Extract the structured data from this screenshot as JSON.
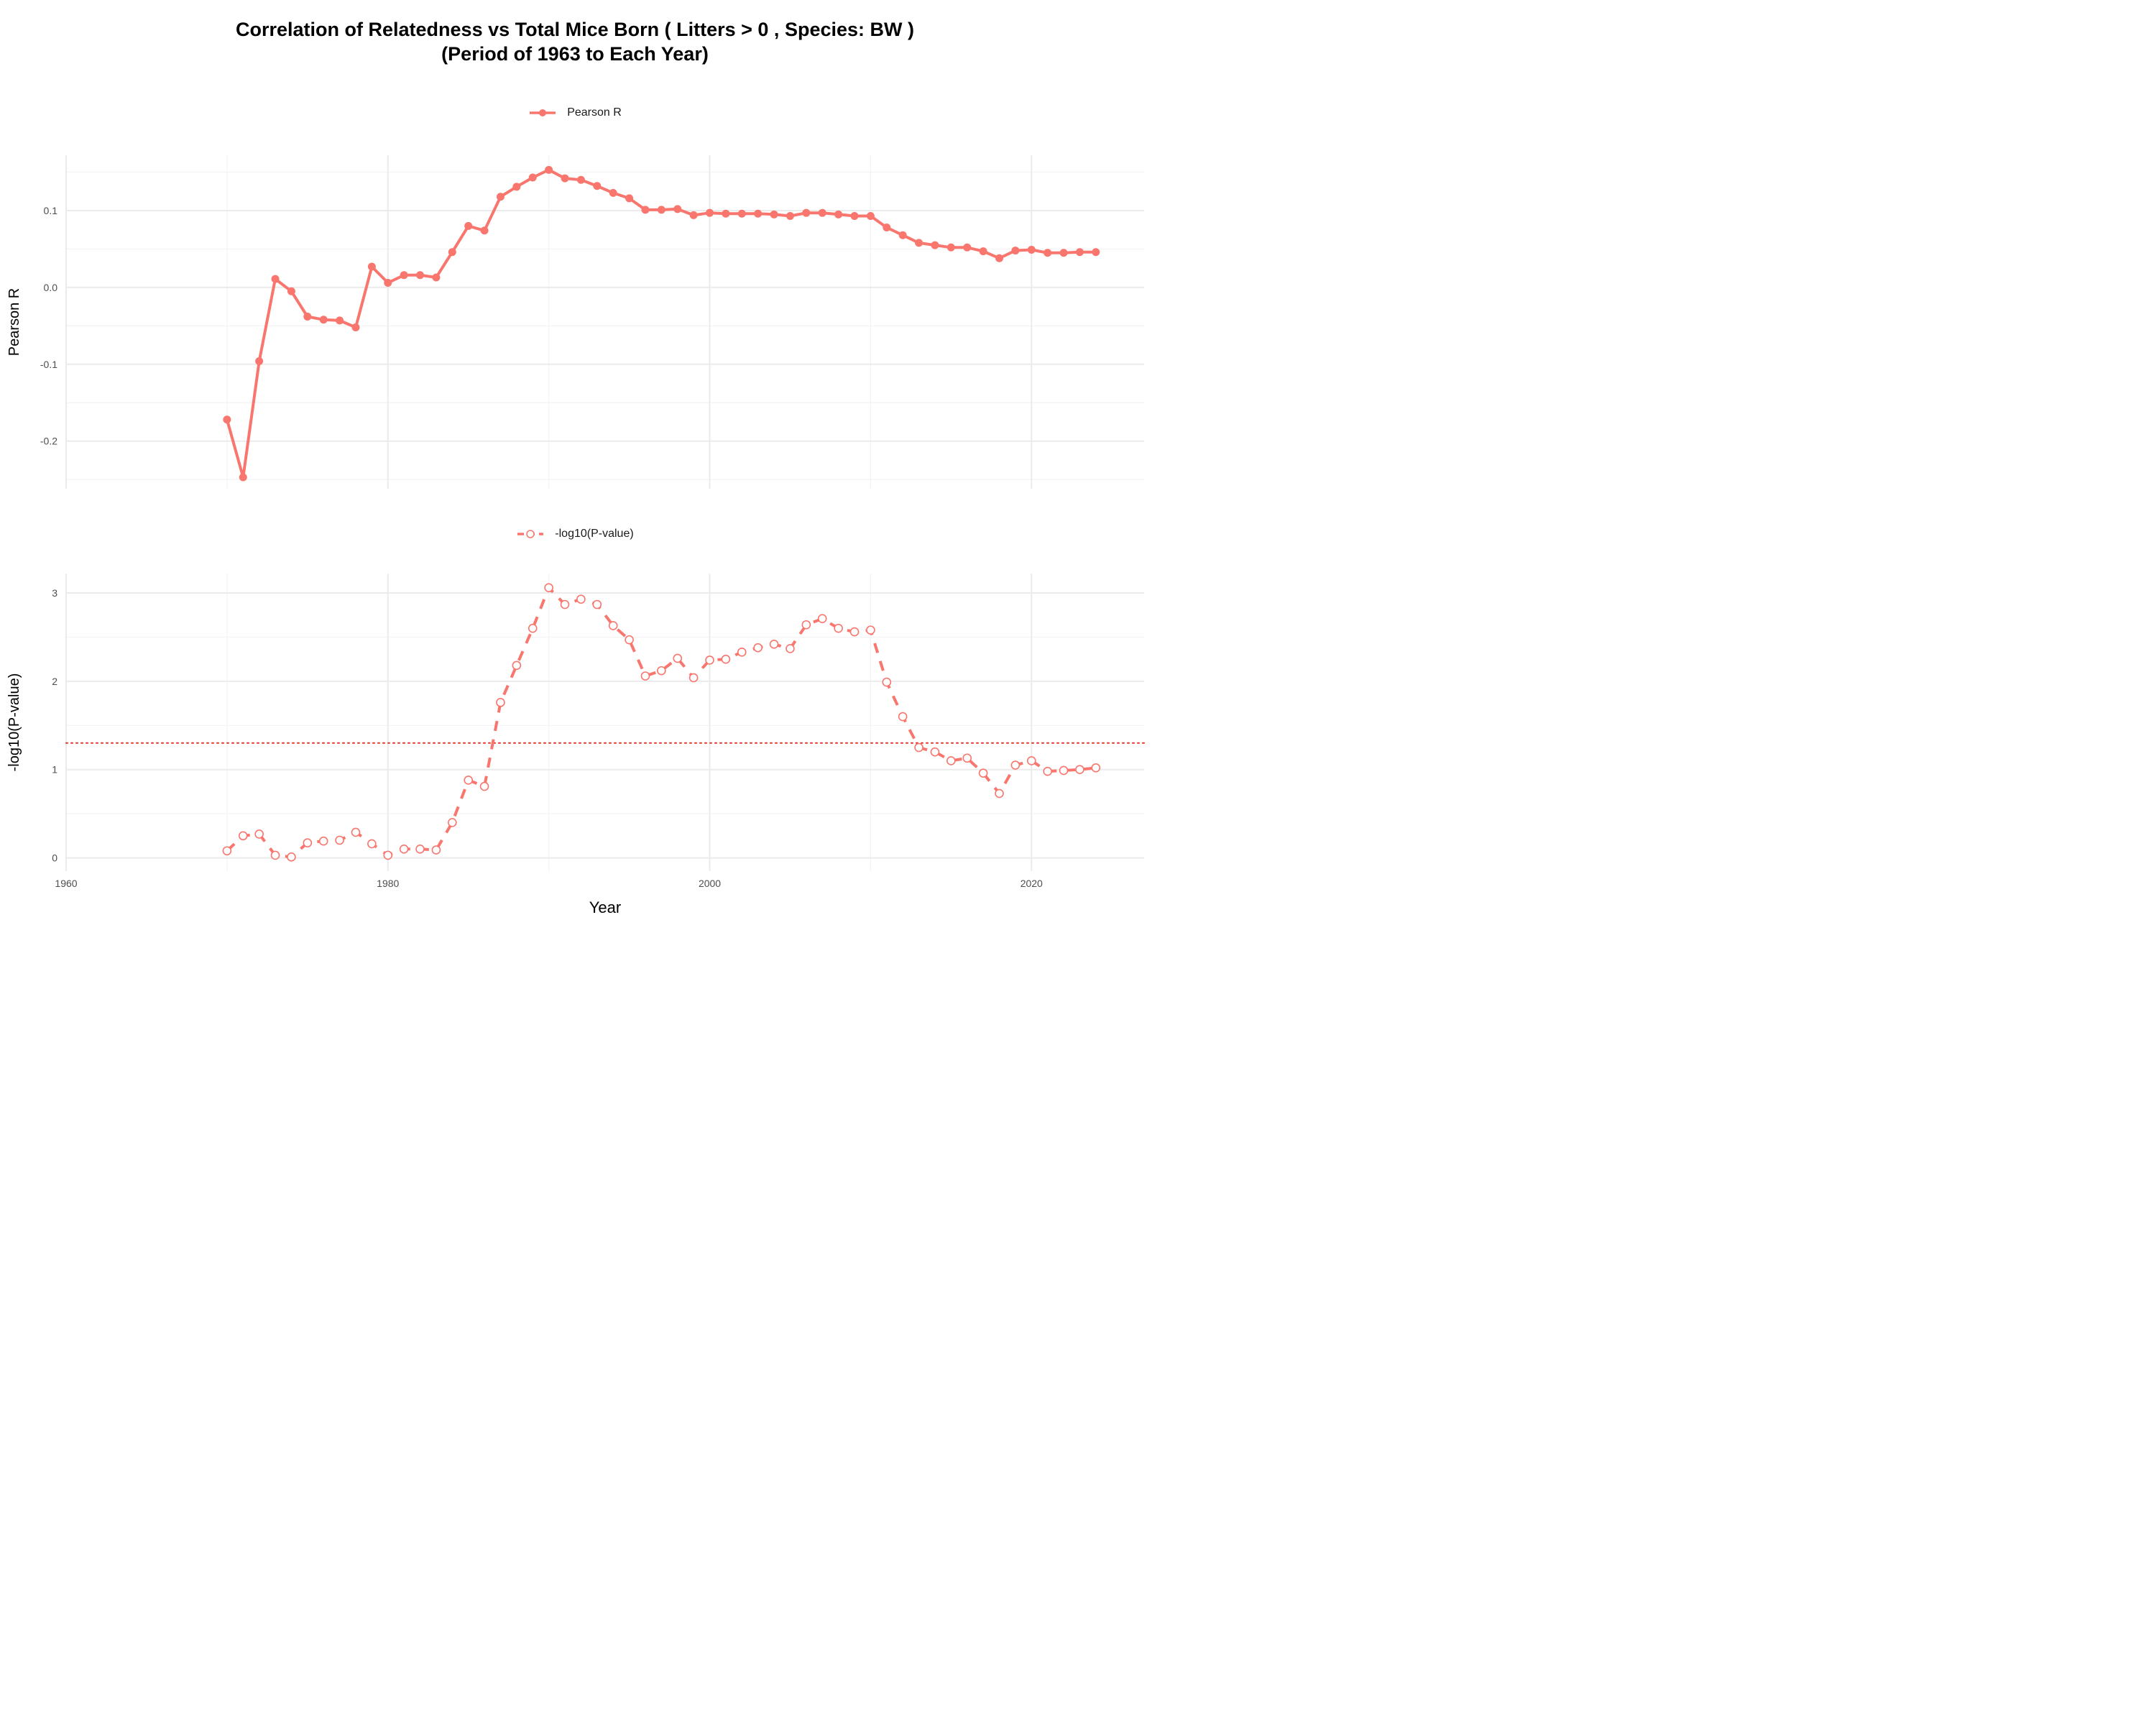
{
  "figure": {
    "title_line1": "Correlation of Relatedness vs Total Mice Born ( Litters > 0 , Species: BW )",
    "title_line2": "(Period of 1963 to Each Year)"
  },
  "colors": {
    "series": "#F8766D",
    "threshold": "#E8302A",
    "grid": "#EBEBEB",
    "grid_minor": "#F3F3F3"
  },
  "chart_data": [
    {
      "type": "line",
      "title": "",
      "legend": {
        "label": "Pearson R",
        "position": "top-center"
      },
      "ylabel": "Pearson R",
      "xlabel": "",
      "xlim": [
        1960,
        2027
      ],
      "ylim": [
        -0.262,
        0.172
      ],
      "x_ticks": [
        1960,
        1980,
        2000,
        2020
      ],
      "y_ticks": [
        -0.2,
        -0.1,
        0.0,
        0.1
      ],
      "y_tick_labels": [
        "-0.2",
        "-0.1",
        "0.0",
        "0.1"
      ],
      "grid": true,
      "line_style": "solid",
      "marker": "filled-circle",
      "series": [
        {
          "name": "Pearson R",
          "x": [
            1970,
            1971,
            1972,
            1973,
            1974,
            1975,
            1976,
            1977,
            1978,
            1979,
            1980,
            1981,
            1982,
            1983,
            1984,
            1985,
            1986,
            1987,
            1988,
            1989,
            1990,
            1991,
            1992,
            1993,
            1994,
            1995,
            1996,
            1997,
            1998,
            1999,
            2000,
            2001,
            2002,
            2003,
            2004,
            2005,
            2006,
            2007,
            2008,
            2009,
            2010,
            2011,
            2012,
            2013,
            2014,
            2015,
            2016,
            2017,
            2018,
            2019,
            2020,
            2021,
            2022,
            2023,
            2024
          ],
          "values": [
            -0.172,
            -0.247,
            -0.096,
            0.011,
            -0.005,
            -0.038,
            -0.042,
            -0.043,
            -0.052,
            0.027,
            0.006,
            0.016,
            0.016,
            0.013,
            0.046,
            0.08,
            0.074,
            0.118,
            0.131,
            0.143,
            0.153,
            0.142,
            0.14,
            0.132,
            0.123,
            0.116,
            0.101,
            0.101,
            0.102,
            0.094,
            0.097,
            0.096,
            0.096,
            0.096,
            0.095,
            0.093,
            0.097,
            0.097,
            0.095,
            0.093,
            0.093,
            0.078,
            0.068,
            0.058,
            0.055,
            0.052,
            0.052,
            0.047,
            0.038,
            0.048,
            0.049,
            0.045,
            0.045,
            0.046,
            0.046
          ]
        }
      ]
    },
    {
      "type": "line",
      "title": "",
      "legend": {
        "label": "-log10(P-value)",
        "position": "top-center"
      },
      "ylabel": "-log10(P-value)",
      "xlabel": "Year",
      "xlim": [
        1960,
        2027
      ],
      "ylim": [
        -0.15,
        3.22
      ],
      "x_ticks": [
        1960,
        1980,
        2000,
        2020
      ],
      "x_tick_labels": [
        "1960",
        "1980",
        "2000",
        "2020"
      ],
      "y_ticks": [
        0,
        1,
        2,
        3
      ],
      "y_tick_labels": [
        "0",
        "1",
        "2",
        "3"
      ],
      "grid": true,
      "line_style": "dashed",
      "marker": "open-circle",
      "reference_line": {
        "y": 1.301,
        "style": "dotted"
      },
      "series": [
        {
          "name": "-log10(P-value)",
          "x": [
            1970,
            1971,
            1972,
            1973,
            1974,
            1975,
            1976,
            1977,
            1978,
            1979,
            1980,
            1981,
            1982,
            1983,
            1984,
            1985,
            1986,
            1987,
            1988,
            1989,
            1990,
            1991,
            1992,
            1993,
            1994,
            1995,
            1996,
            1997,
            1998,
            1999,
            2000,
            2001,
            2002,
            2003,
            2004,
            2005,
            2006,
            2007,
            2008,
            2009,
            2010,
            2011,
            2012,
            2013,
            2014,
            2015,
            2016,
            2017,
            2018,
            2019,
            2020,
            2021,
            2022,
            2023,
            2024
          ],
          "values": [
            0.08,
            0.25,
            0.27,
            0.03,
            0.01,
            0.17,
            0.19,
            0.2,
            0.29,
            0.16,
            0.03,
            0.1,
            0.1,
            0.09,
            0.4,
            0.88,
            0.81,
            1.76,
            2.18,
            2.6,
            3.06,
            2.87,
            2.93,
            2.87,
            2.63,
            2.47,
            2.06,
            2.12,
            2.26,
            2.04,
            2.24,
            2.25,
            2.33,
            2.38,
            2.42,
            2.37,
            2.64,
            2.71,
            2.6,
            2.56,
            2.58,
            1.99,
            1.6,
            1.25,
            1.2,
            1.1,
            1.13,
            0.96,
            0.73,
            1.05,
            1.1,
            0.98,
            0.99,
            1.0,
            1.02
          ]
        }
      ]
    }
  ]
}
